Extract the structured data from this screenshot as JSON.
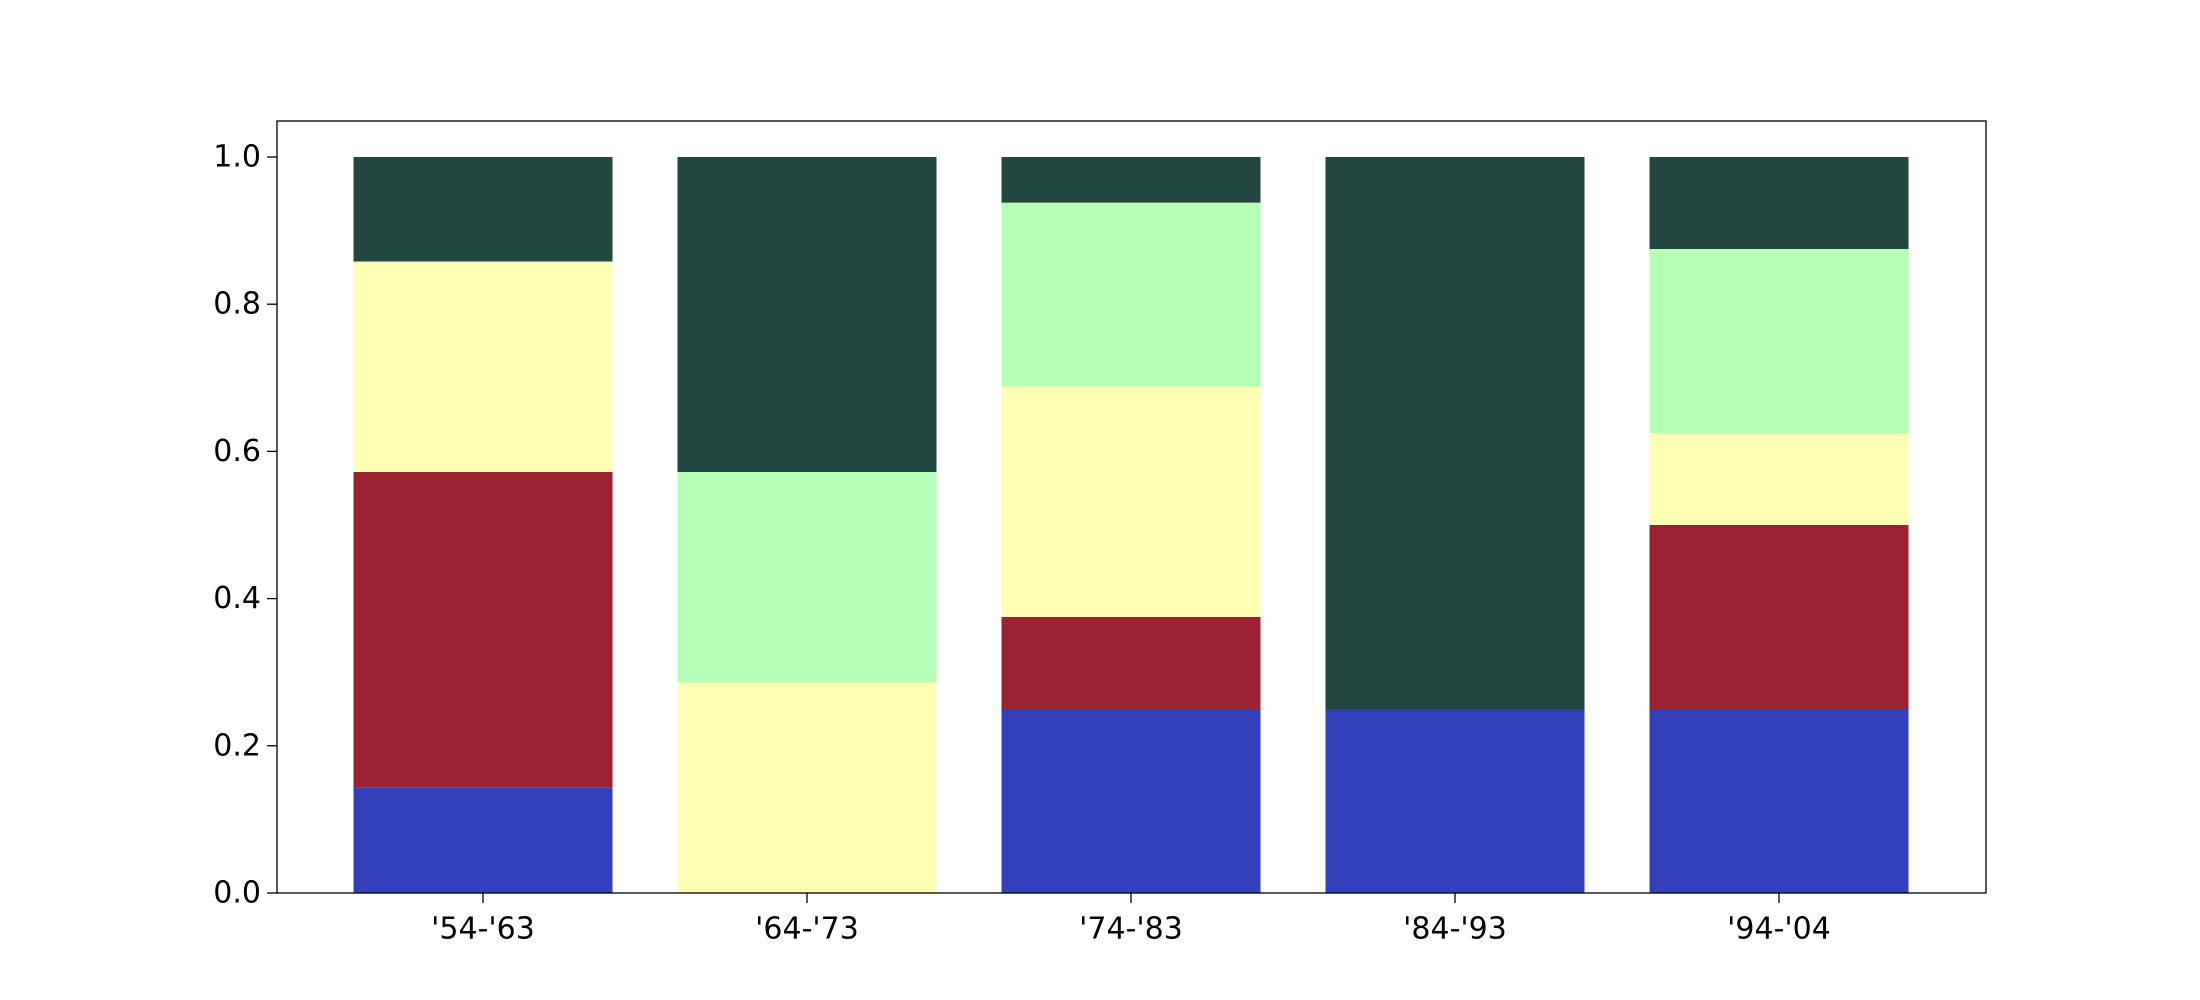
{
  "chart_data": {
    "type": "bar",
    "stacked": true,
    "categories": [
      "'54-'63",
      "'64-'73",
      "'74-'83",
      "'84-'93",
      "'94-'04"
    ],
    "series": [
      {
        "color": "#343fba",
        "values": [
          0.143,
          0.0,
          0.25,
          0.25,
          0.25
        ]
      },
      {
        "color": "#9a2232",
        "values": [
          0.429,
          0.0,
          0.125,
          0.0,
          0.25
        ]
      },
      {
        "color": "#fefeb5",
        "values": [
          0.286,
          0.286,
          0.313,
          0.0,
          0.125
        ]
      },
      {
        "color": "#b5feb5",
        "values": [
          0.0,
          0.286,
          0.25,
          0.0,
          0.25
        ]
      },
      {
        "color": "#224741",
        "values": [
          0.142,
          0.428,
          0.062,
          0.75,
          0.125
        ]
      }
    ],
    "yticks": [
      "0.0",
      "0.2",
      "0.4",
      "0.6",
      "0.8",
      "1.0"
    ],
    "ylim": [
      0,
      1.05
    ],
    "grid": false,
    "legend": "none"
  }
}
